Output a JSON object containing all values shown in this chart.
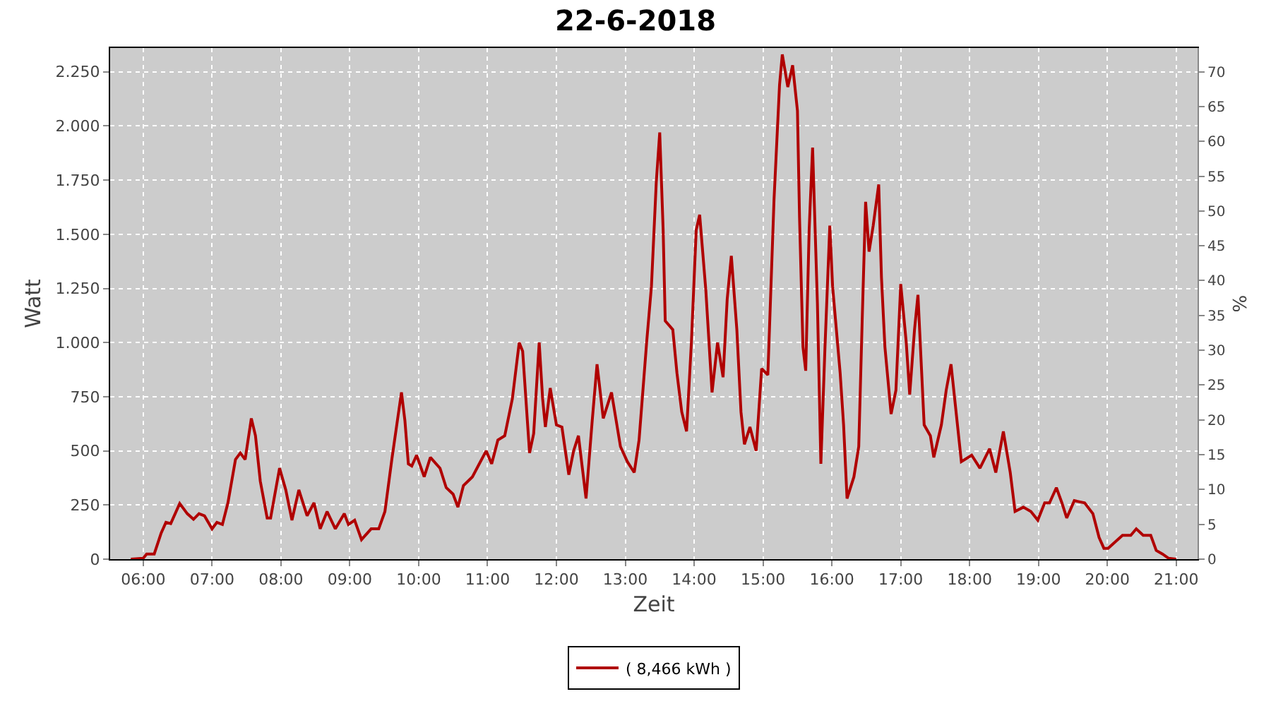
{
  "chart_data": {
    "type": "line",
    "title": "22-6-2018",
    "xlabel": "Zeit",
    "ylabel": "Watt",
    "y2label": "%",
    "xlim": [
      5.52,
      21.31
    ],
    "xticks": [
      {
        "value": 6,
        "label": "06:00"
      },
      {
        "value": 7,
        "label": "07:00"
      },
      {
        "value": 8,
        "label": "08:00"
      },
      {
        "value": 9,
        "label": "09:00"
      },
      {
        "value": 10,
        "label": "10:00"
      },
      {
        "value": 11,
        "label": "11:00"
      },
      {
        "value": 12,
        "label": "12:00"
      },
      {
        "value": 13,
        "label": "13:00"
      },
      {
        "value": 14,
        "label": "14:00"
      },
      {
        "value": 15,
        "label": "15:00"
      },
      {
        "value": 16,
        "label": "16:00"
      },
      {
        "value": 17,
        "label": "17:00"
      },
      {
        "value": 18,
        "label": "18:00"
      },
      {
        "value": 19,
        "label": "19:00"
      },
      {
        "value": 20,
        "label": "20:00"
      },
      {
        "value": 21,
        "label": "21:00"
      }
    ],
    "ylim": [
      0,
      2360
    ],
    "yticks": [
      0,
      250,
      500,
      750,
      {
        "value": 1000,
        "label": "1.000"
      },
      {
        "value": 1250,
        "label": "1.250"
      },
      {
        "value": 1500,
        "label": "1.500"
      },
      {
        "value": 1750,
        "label": "1.750"
      },
      {
        "value": 2000,
        "label": "2.000"
      },
      {
        "value": 2250,
        "label": "2.250"
      }
    ],
    "y2lim": [
      0,
      73.4
    ],
    "y2ticks": [
      0,
      5,
      10,
      15,
      20,
      25,
      30,
      35,
      40,
      45,
      50,
      55,
      60,
      65,
      70
    ],
    "grid": true,
    "legend": "bottom",
    "line_style": "solid",
    "marker": "none",
    "series": [
      {
        "name": "( 8,466 kWh )",
        "color": "#b00000",
        "x": [
          5.82,
          6.0,
          6.05,
          6.16,
          6.26,
          6.33,
          6.4,
          6.53,
          6.64,
          6.73,
          6.81,
          6.89,
          7.0,
          7.07,
          7.15,
          7.23,
          7.34,
          7.41,
          7.48,
          7.57,
          7.63,
          7.7,
          7.8,
          7.85,
          7.98,
          8.07,
          8.16,
          8.26,
          8.38,
          8.48,
          8.57,
          8.67,
          8.79,
          8.92,
          8.98,
          9.07,
          9.17,
          9.31,
          9.42,
          9.51,
          9.61,
          9.7,
          9.75,
          9.8,
          9.85,
          9.9,
          9.97,
          10.08,
          10.17,
          10.31,
          10.4,
          10.5,
          10.57,
          10.65,
          10.78,
          10.88,
          10.98,
          11.06,
          11.15,
          11.25,
          11.36,
          11.46,
          11.51,
          11.61,
          11.67,
          11.75,
          11.8,
          11.84,
          11.91,
          12.0,
          12.08,
          12.18,
          12.25,
          12.32,
          12.43,
          12.52,
          12.59,
          12.68,
          12.8,
          12.93,
          13.03,
          13.13,
          13.2,
          13.31,
          13.38,
          13.45,
          13.5,
          13.55,
          13.58,
          13.69,
          13.75,
          13.82,
          13.89,
          13.96,
          14.03,
          14.08,
          14.17,
          14.26,
          14.34,
          14.42,
          14.48,
          14.54,
          14.62,
          14.68,
          14.73,
          14.81,
          14.9,
          14.98,
          15.07,
          15.16,
          15.24,
          15.28,
          15.36,
          15.43,
          15.5,
          15.53,
          15.58,
          15.62,
          15.67,
          15.72,
          15.79,
          15.84,
          15.9,
          15.97,
          16.01,
          16.12,
          16.17,
          16.22,
          16.32,
          16.39,
          16.44,
          16.49,
          16.54,
          16.6,
          16.68,
          16.72,
          16.77,
          16.86,
          16.93,
          17.0,
          17.08,
          17.13,
          17.2,
          17.25,
          17.34,
          17.43,
          17.48,
          17.59,
          17.66,
          17.73,
          17.81,
          17.88,
          18.03,
          18.15,
          18.29,
          18.38,
          18.49,
          18.59,
          18.66,
          18.78,
          18.89,
          18.99,
          19.09,
          19.16,
          19.26,
          19.34,
          19.41,
          19.52,
          19.67,
          19.79,
          19.88,
          19.95,
          20.01,
          20.22,
          20.34,
          20.42,
          20.52,
          20.63,
          20.71,
          20.8,
          20.89,
          21.0
        ],
        "values": [
          0,
          4,
          24,
          24,
          120,
          170,
          164,
          257,
          210,
          184,
          210,
          200,
          140,
          170,
          160,
          260,
          460,
          490,
          460,
          650,
          570,
          360,
          190,
          190,
          420,
          320,
          180,
          320,
          200,
          260,
          140,
          220,
          140,
          210,
          160,
          180,
          90,
          140,
          140,
          220,
          460,
          660,
          770,
          640,
          440,
          430,
          480,
          380,
          470,
          420,
          330,
          300,
          240,
          340,
          380,
          440,
          500,
          440,
          550,
          570,
          740,
          1000,
          960,
          490,
          580,
          1000,
          740,
          610,
          790,
          620,
          610,
          390,
          500,
          570,
          280,
          640,
          900,
          650,
          770,
          520,
          450,
          400,
          550,
          1000,
          1260,
          1740,
          1970,
          1520,
          1100,
          1060,
          860,
          680,
          590,
          1000,
          1520,
          1590,
          1240,
          770,
          1000,
          840,
          1200,
          1400,
          1060,
          680,
          530,
          610,
          500,
          880,
          850,
          1660,
          2190,
          2330,
          2180,
          2280,
          2070,
          1580,
          980,
          870,
          1520,
          1900,
          1180,
          440,
          980,
          1540,
          1260,
          860,
          620,
          280,
          380,
          520,
          1100,
          1650,
          1420,
          1540,
          1730,
          1300,
          980,
          670,
          780,
          1270,
          1000,
          760,
          1060,
          1220,
          620,
          570,
          470,
          620,
          780,
          900,
          660,
          450,
          480,
          420,
          510,
          400,
          590,
          400,
          220,
          240,
          220,
          180,
          260,
          260,
          330,
          260,
          190,
          270,
          260,
          210,
          100,
          50,
          50,
          110,
          110,
          140,
          110,
          110,
          40,
          24,
          4,
          0
        ]
      }
    ]
  }
}
